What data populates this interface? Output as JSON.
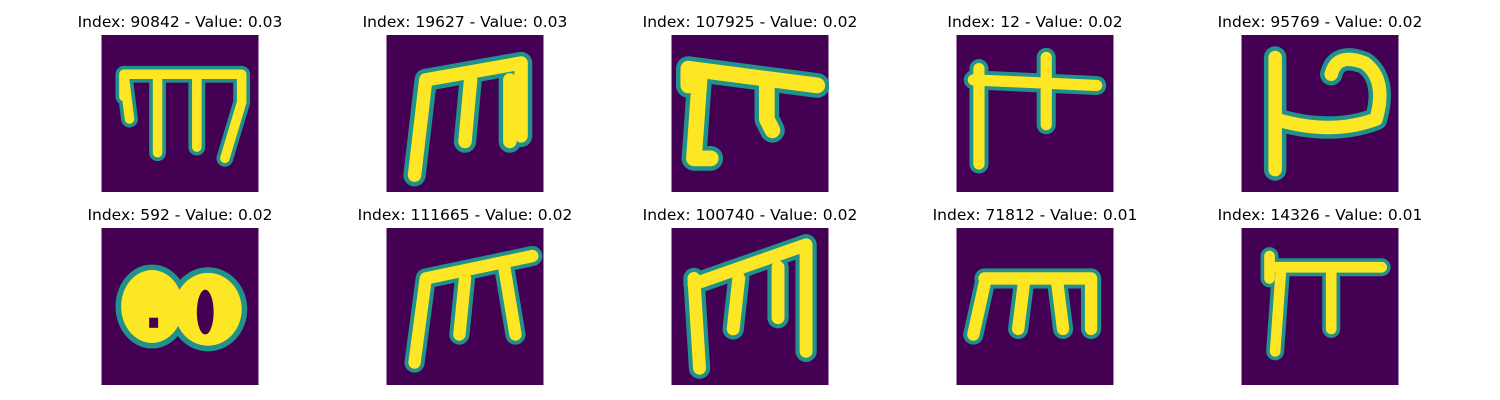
{
  "panels": [
    {
      "title": "Index: 90842 - Value: 0.03",
      "glyph": "glyph-m-open"
    },
    {
      "title": "Index: 19627 - Value: 0.03",
      "glyph": "glyph-m-thick"
    },
    {
      "title": "Index: 107925 - Value: 0.02",
      "glyph": "glyph-hook-bar"
    },
    {
      "title": "Index: 12 - Value: 0.02",
      "glyph": "glyph-cross-bar"
    },
    {
      "title": "Index: 95769 - Value: 0.02",
      "glyph": "glyph-loop-right"
    },
    {
      "title": "Index: 592 - Value: 0.02",
      "glyph": "glyph-blob"
    },
    {
      "title": "Index: 111665 - Value: 0.02",
      "glyph": "glyph-m-slanted"
    },
    {
      "title": "Index: 100740 - Value: 0.02",
      "glyph": "glyph-m-tall"
    },
    {
      "title": "Index: 71812 - Value: 0.01",
      "glyph": "glyph-m-short"
    },
    {
      "title": "Index: 14326 - Value: 0.01",
      "glyph": "glyph-pi"
    }
  ],
  "colors": {
    "background": "#440154",
    "stroke": "#fde725",
    "edge": "#21918c"
  }
}
